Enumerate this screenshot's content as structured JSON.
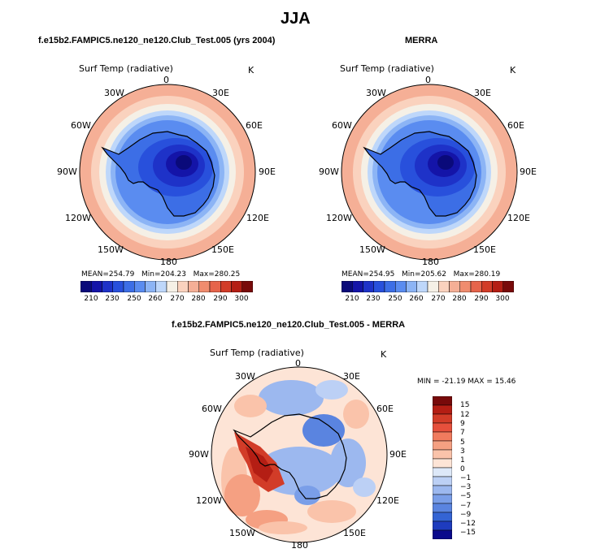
{
  "title": "JJA",
  "panels": [
    {
      "case": "f.e15b2.FAMPIC5.ne120_ne120.Club_Test.005 (yrs 2004)",
      "variable": "Surf Temp (radiative)",
      "units": "K",
      "stats": {
        "mean_label": "MEAN=",
        "mean": "254.79",
        "min_label": "Min=",
        "min": "204.23",
        "max_label": "Max=",
        "max": "280.25"
      },
      "colorbar_ticks": [
        "210",
        "230",
        "250",
        "260",
        "270",
        "280",
        "290",
        "300"
      ]
    },
    {
      "case": "MERRA",
      "variable": "Surf Temp (radiative)",
      "units": "K",
      "stats": {
        "mean_label": "MEAN=",
        "mean": "254.95",
        "min_label": "Min=",
        "min": "205.62",
        "max_label": "Max=",
        "max": "280.19"
      },
      "colorbar_ticks": [
        "210",
        "230",
        "250",
        "260",
        "270",
        "280",
        "290",
        "300"
      ]
    },
    {
      "case": "f.e15b2.FAMPIC5.ne120_ne120.Club_Test.005 - MERRA",
      "variable": "Surf Temp (radiative)",
      "units": "K",
      "stats": {
        "text": "MIN = -21.19 MAX =  15.46"
      },
      "colorbar_ticks": [
        "15",
        "12",
        "9",
        "7",
        "5",
        "3",
        "1",
        "0",
        "−1",
        "−3",
        "−5",
        "−7",
        "−9",
        "−12",
        "−15"
      ]
    }
  ],
  "longitude_labels": [
    "0",
    "30E",
    "60E",
    "90E",
    "120E",
    "150E",
    "180",
    "150W",
    "120W",
    "90W",
    "60W",
    "30W"
  ],
  "abs_colors": [
    "#0a0a7a",
    "#1414a8",
    "#1e32c8",
    "#2850dc",
    "#3c6ee6",
    "#5a8cf0",
    "#8cb4f5",
    "#bed7fa",
    "#f5f0e6",
    "#fad2be",
    "#f5af96",
    "#f08c6e",
    "#e6644b",
    "#d23c28",
    "#b41e14",
    "#780a0a"
  ],
  "diff_colors": [
    "#780a0a",
    "#b41e14",
    "#d23c28",
    "#e6503c",
    "#f07b5e",
    "#f5a082",
    "#fac3aa",
    "#fde4d6",
    "#dde8f8",
    "#bcd0f5",
    "#9cb8ef",
    "#7a9ee8",
    "#5a84e0",
    "#3464d4",
    "#1e3cbe",
    "#0a0a8c"
  ]
}
